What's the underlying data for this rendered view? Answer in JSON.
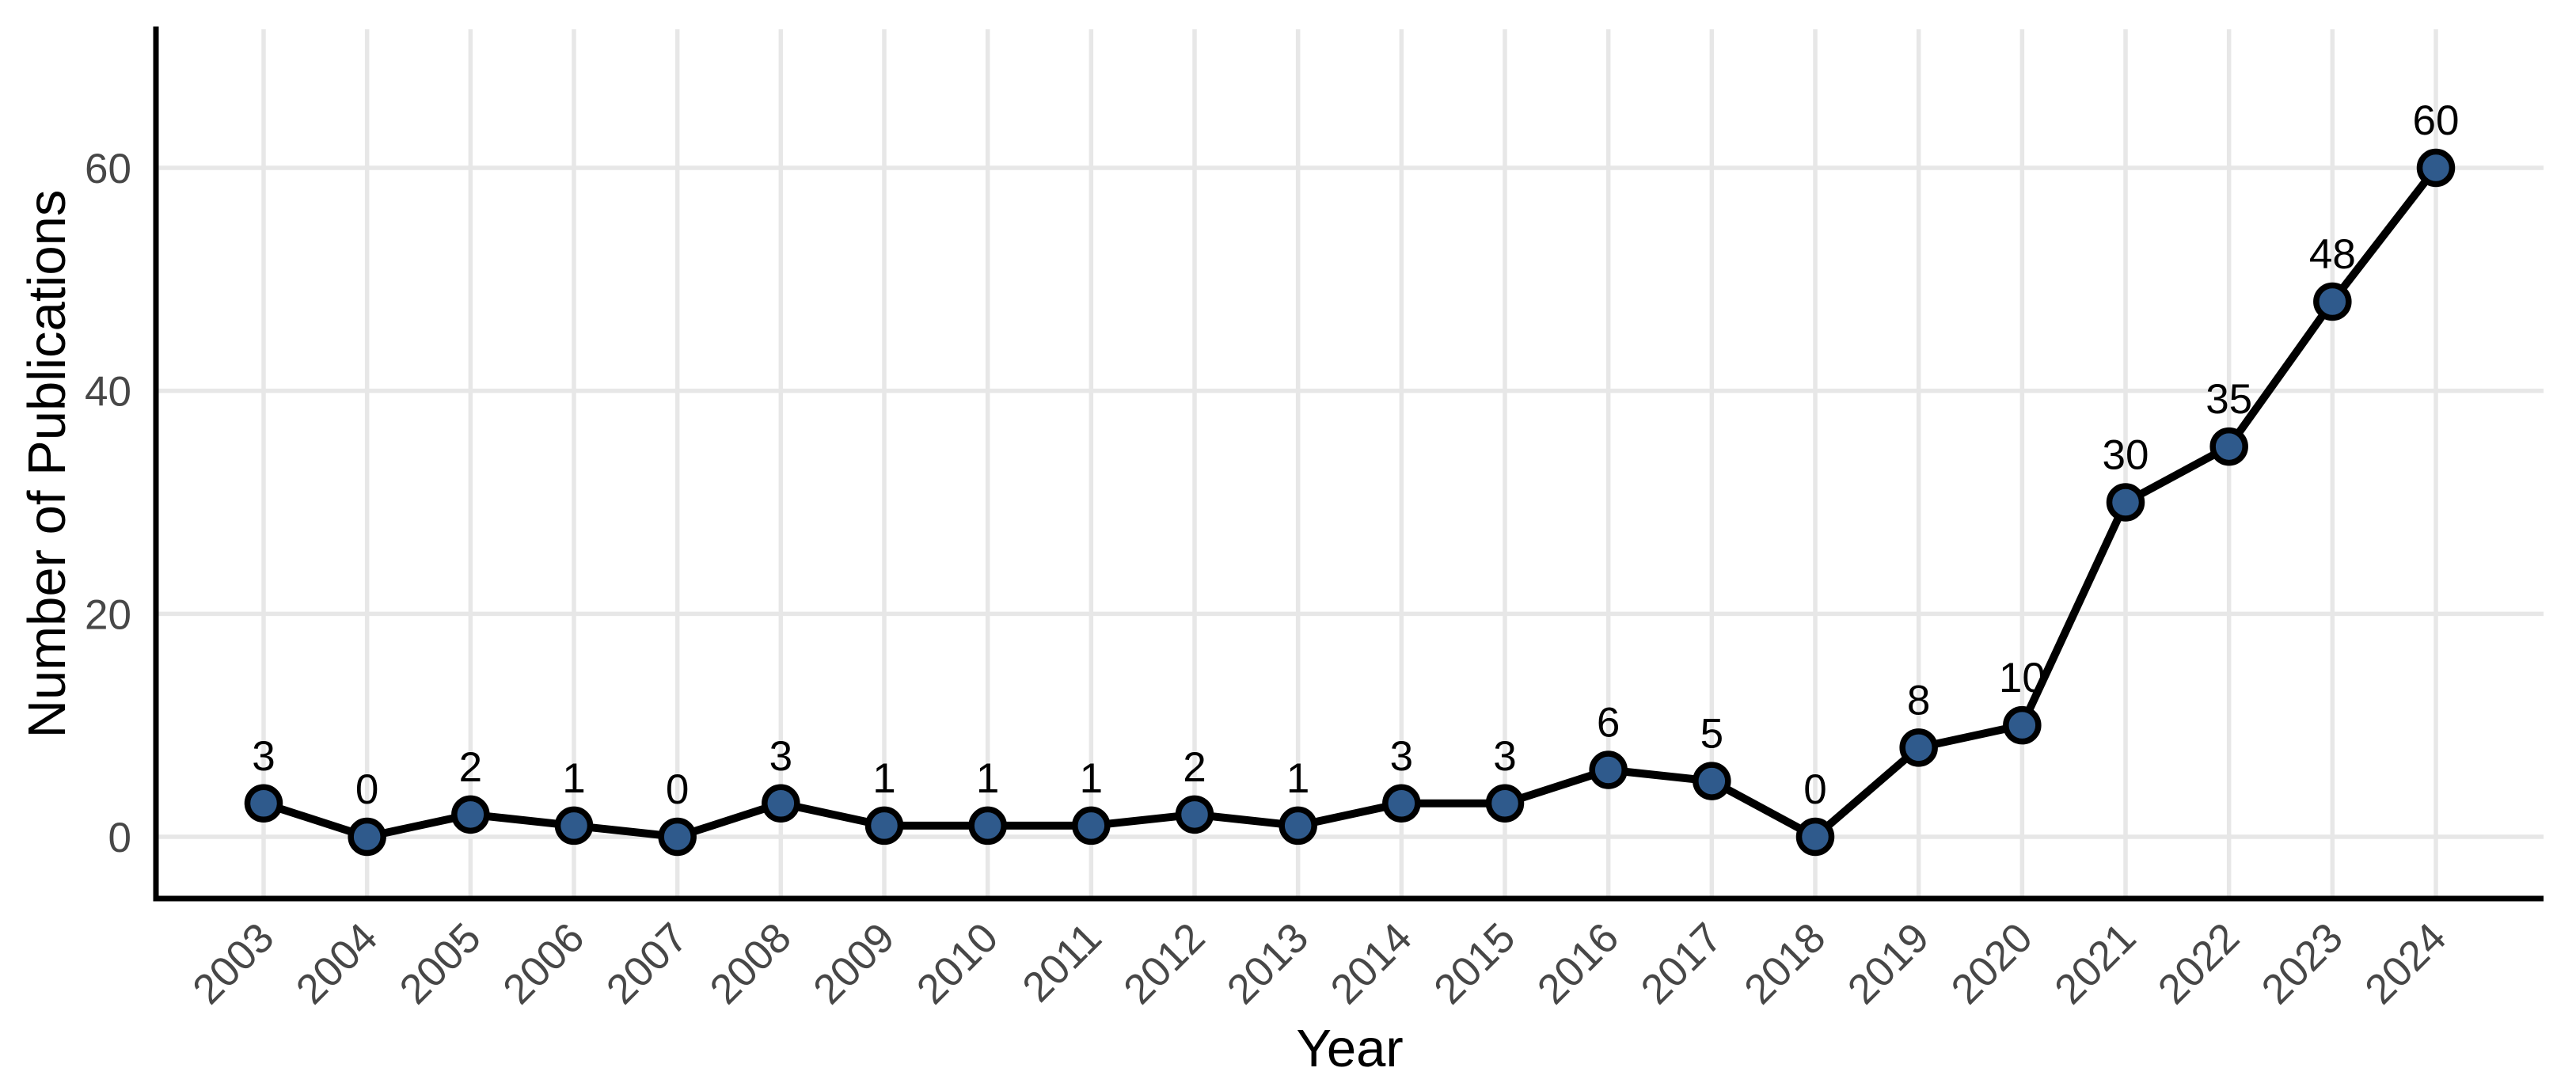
{
  "chart_data": {
    "type": "line",
    "title": "",
    "xlabel": "Year",
    "ylabel": "Number of Publications",
    "categories": [
      "2003",
      "2004",
      "2005",
      "2006",
      "2007",
      "2008",
      "2009",
      "2010",
      "2011",
      "2012",
      "2013",
      "2014",
      "2015",
      "2016",
      "2017",
      "2018",
      "2019",
      "2020",
      "2021",
      "2022",
      "2023",
      "2024"
    ],
    "values": [
      3,
      0,
      2,
      1,
      0,
      3,
      1,
      1,
      1,
      2,
      1,
      3,
      3,
      6,
      5,
      0,
      8,
      10,
      30,
      35,
      48,
      60
    ],
    "point_labels_shown": true,
    "yticks": [
      0,
      20,
      40,
      60
    ],
    "ylim": [
      -5.5,
      72.5
    ],
    "grid": "major-only",
    "legend": "none",
    "x_tick_rotation_deg": 45,
    "colors": {
      "point_fill": "#2F5A8C",
      "point_stroke": "#000000",
      "line": "#000000",
      "gridline": "#E7E7E7",
      "axis_line": "#000000",
      "tick_label": "#474747",
      "data_label": "#000000",
      "axis_title": "#000000",
      "background": "#FFFFFF"
    }
  }
}
